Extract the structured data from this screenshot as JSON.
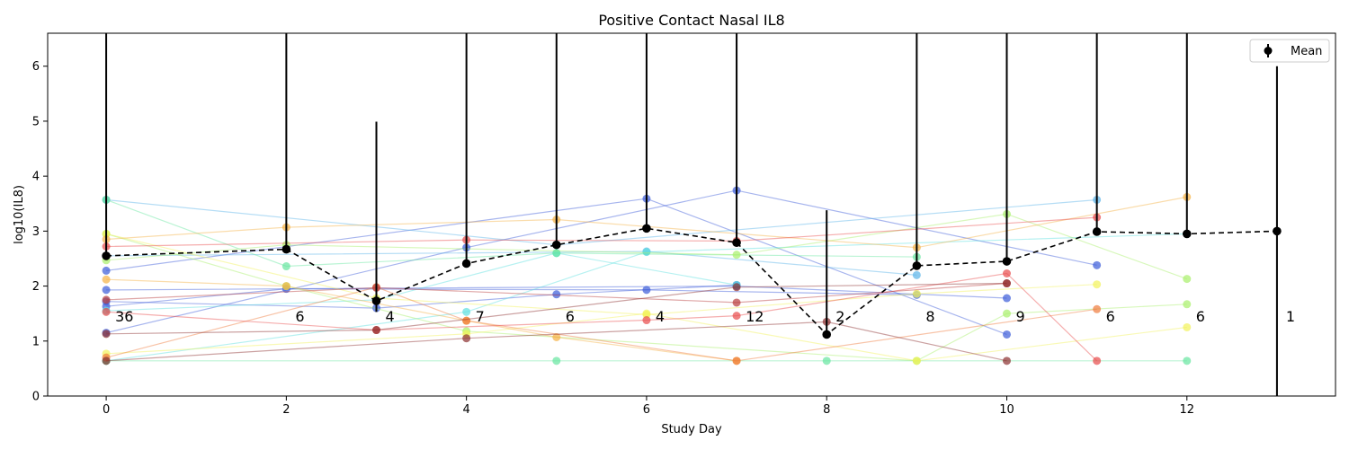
{
  "chart_data": {
    "type": "line",
    "title": "Positive Contact Nasal IL8",
    "xlabel": "Study Day",
    "ylabel": "log10(IL8)",
    "xlim": [
      -0.65,
      13.65
    ],
    "ylim": [
      0,
      6.6
    ],
    "xticks": [
      0,
      2,
      4,
      6,
      8,
      10,
      12
    ],
    "yticks": [
      0,
      1,
      2,
      3,
      4,
      5,
      6
    ],
    "grid": false,
    "legend": {
      "position": "top-right",
      "entries": [
        "Mean"
      ]
    },
    "mean_series": {
      "name": "Mean",
      "color": "#000000",
      "x": [
        0,
        2,
        3,
        4,
        5,
        6,
        7,
        8,
        9,
        10,
        11,
        12,
        13
      ],
      "y": [
        2.55,
        2.67,
        1.73,
        2.41,
        2.75,
        3.05,
        2.79,
        1.12,
        2.37,
        2.45,
        2.99,
        2.95,
        3.0
      ],
      "err_low": [
        0,
        0.05,
        0.2,
        0,
        0,
        0,
        0,
        0,
        0,
        0,
        0,
        0,
        3.0
      ],
      "err_high": [
        5.5,
        5.27,
        3.26,
        4.9,
        5.53,
        6.33,
        5.98,
        2.26,
        4.71,
        5.27,
        6.17,
        6.17,
        3.0
      ]
    },
    "counts": [
      {
        "x": 0,
        "label": "36"
      },
      {
        "x": 2,
        "label": "6"
      },
      {
        "x": 3,
        "label": "4"
      },
      {
        "x": 4,
        "label": "7"
      },
      {
        "x": 5,
        "label": "6"
      },
      {
        "x": 6,
        "label": "4"
      },
      {
        "x": 7,
        "label": "12"
      },
      {
        "x": 8,
        "label": "2"
      },
      {
        "x": 9,
        "label": "8"
      },
      {
        "x": 10,
        "label": "9"
      },
      {
        "x": 11,
        "label": "6"
      },
      {
        "x": 12,
        "label": "6"
      },
      {
        "x": 13,
        "label": "1"
      }
    ],
    "count_label_y": 1.45,
    "subjects": [
      {
        "color": "#3b5bd9",
        "points": [
          [
            0,
            1.93
          ],
          [
            7,
            2.0
          ],
          [
            10,
            1.78
          ]
        ]
      },
      {
        "color": "#3b5bd9",
        "points": [
          [
            0,
            2.28
          ],
          [
            6,
            3.59
          ],
          [
            10,
            1.12
          ]
        ]
      },
      {
        "color": "#3b5bd9",
        "points": [
          [
            0,
            1.15
          ],
          [
            4,
            2.7
          ],
          [
            7,
            3.74
          ],
          [
            11,
            2.38
          ]
        ]
      },
      {
        "color": "#3b5bd9",
        "points": [
          [
            0,
            1.63
          ],
          [
            2,
            1.95
          ],
          [
            6,
            1.93
          ],
          [
            9,
            1.84
          ]
        ]
      },
      {
        "color": "#3b5bd9",
        "points": [
          [
            0,
            1.72
          ],
          [
            3,
            1.6
          ],
          [
            5,
            1.85
          ],
          [
            7,
            2.02
          ]
        ]
      },
      {
        "color": "#5ab4e8",
        "points": [
          [
            0,
            3.57
          ],
          [
            5,
            2.75
          ],
          [
            11,
            3.57
          ]
        ]
      },
      {
        "color": "#5ab4e8",
        "points": [
          [
            0,
            2.55
          ],
          [
            6,
            2.63
          ],
          [
            9,
            2.2
          ]
        ]
      },
      {
        "color": "#5ee0e0",
        "points": [
          [
            0,
            0.64
          ],
          [
            4,
            1.53
          ],
          [
            6,
            2.62
          ],
          [
            12,
            2.95
          ]
        ]
      },
      {
        "color": "#5ee0e0",
        "points": [
          [
            0,
            1.55
          ],
          [
            3,
            1.75
          ],
          [
            5,
            2.6
          ],
          [
            7,
            2.02
          ]
        ]
      },
      {
        "color": "#66e6a0",
        "points": [
          [
            0,
            3.57
          ],
          [
            2,
            2.36
          ],
          [
            5,
            2.6
          ],
          [
            9,
            2.53
          ]
        ]
      },
      {
        "color": "#66e6a0",
        "points": [
          [
            0,
            0.64
          ],
          [
            5,
            0.64
          ],
          [
            8,
            0.64
          ],
          [
            12,
            0.64
          ]
        ]
      },
      {
        "color": "#a8ef6a",
        "points": [
          [
            0,
            2.47
          ],
          [
            2,
            2.75
          ],
          [
            7,
            2.57
          ],
          [
            10,
            3.31
          ],
          [
            12,
            2.13
          ]
        ]
      },
      {
        "color": "#a8ef6a",
        "points": [
          [
            0,
            2.95
          ],
          [
            2,
            2.0
          ],
          [
            4,
            1.18
          ],
          [
            9,
            0.64
          ],
          [
            10,
            1.5
          ],
          [
            12,
            1.67
          ]
        ]
      },
      {
        "color": "#f2f25a",
        "points": [
          [
            0,
            2.95
          ],
          [
            3,
            1.78
          ],
          [
            6,
            1.48
          ],
          [
            9,
            1.86
          ],
          [
            11,
            2.03
          ]
        ]
      },
      {
        "color": "#f2f25a",
        "points": [
          [
            0,
            0.77
          ],
          [
            4,
            1.13
          ],
          [
            6,
            1.5
          ],
          [
            9,
            0.64
          ],
          [
            12,
            1.25
          ]
        ]
      },
      {
        "color": "#f5b245",
        "points": [
          [
            0,
            2.85
          ],
          [
            2,
            3.07
          ],
          [
            5,
            3.21
          ],
          [
            9,
            2.7
          ],
          [
            12,
            3.62
          ]
        ]
      },
      {
        "color": "#f5b245",
        "points": [
          [
            0,
            2.12
          ],
          [
            2,
            2.0
          ],
          [
            4,
            1.37
          ],
          [
            5,
            1.07
          ],
          [
            7,
            0.64
          ]
        ]
      },
      {
        "color": "#f07a3c",
        "points": [
          [
            0,
            0.7
          ],
          [
            3,
            1.98
          ],
          [
            4,
            1.37
          ],
          [
            7,
            0.64
          ],
          [
            11,
            1.58
          ]
        ]
      },
      {
        "color": "#e84a4a",
        "points": [
          [
            0,
            2.72
          ],
          [
            4,
            2.84
          ],
          [
            7,
            2.82
          ],
          [
            11,
            3.25
          ]
        ]
      },
      {
        "color": "#e84a4a",
        "points": [
          [
            0,
            1.53
          ],
          [
            3,
            1.2
          ],
          [
            6,
            1.38
          ],
          [
            7,
            1.46
          ],
          [
            10,
            2.23
          ],
          [
            11,
            0.64
          ]
        ]
      },
      {
        "color": "#b83a3a",
        "points": [
          [
            0,
            1.75
          ],
          [
            3,
            1.97
          ],
          [
            7,
            1.7
          ],
          [
            10,
            2.05
          ]
        ]
      },
      {
        "color": "#8b2f2f",
        "points": [
          [
            0,
            0.64
          ],
          [
            4,
            1.05
          ],
          [
            8,
            1.35
          ],
          [
            10,
            0.64
          ]
        ]
      },
      {
        "color": "#8b2f2f",
        "points": [
          [
            0,
            1.13
          ],
          [
            3,
            1.2
          ],
          [
            7,
            1.98
          ],
          [
            10,
            2.05
          ]
        ]
      }
    ]
  }
}
